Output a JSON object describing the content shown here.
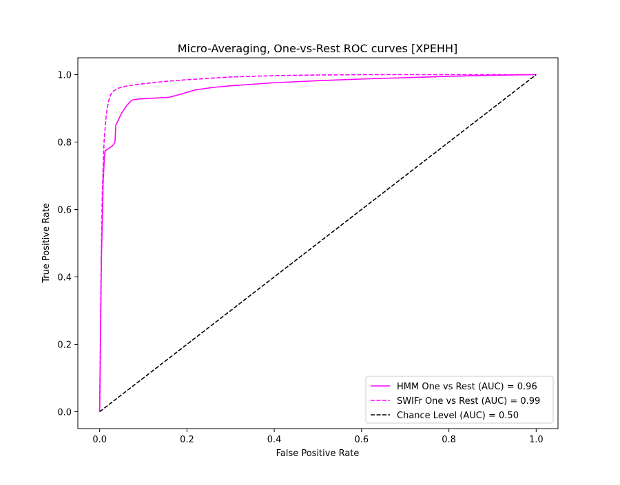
{
  "chart_data": {
    "type": "line",
    "title": "Micro-Averaging, One-vs-Rest ROC curves [XPEHH]",
    "xlabel": "False Positive Rate",
    "ylabel": "True Positive Rate",
    "xlim": [
      -0.05,
      1.05
    ],
    "ylim": [
      -0.05,
      1.05
    ],
    "xticks": [
      0.0,
      0.2,
      0.4,
      0.6,
      0.8,
      1.0
    ],
    "xtick_labels": [
      "0.0",
      "0.2",
      "0.4",
      "0.6",
      "0.8",
      "1.0"
    ],
    "yticks": [
      0.0,
      0.2,
      0.4,
      0.6,
      0.8,
      1.0
    ],
    "ytick_labels": [
      "0.0",
      "0.2",
      "0.4",
      "0.6",
      "0.8",
      "1.0"
    ],
    "grid": false,
    "legend_position": "lower-right",
    "series": [
      {
        "name": "HMM One vs Rest (AUC) = 0.96",
        "color": "#ff00ff",
        "style": "solid",
        "x": [
          0.0,
          0.004,
          0.008,
          0.011,
          0.013,
          0.02,
          0.03,
          0.035,
          0.037,
          0.05,
          0.06,
          0.07,
          0.075,
          0.09,
          0.12,
          0.15,
          0.16,
          0.18,
          0.22,
          0.26,
          0.3,
          0.4,
          0.5,
          0.6,
          0.7,
          0.8,
          0.9,
          1.0
        ],
        "y": [
          0.0,
          0.45,
          0.68,
          0.76,
          0.775,
          0.78,
          0.79,
          0.8,
          0.85,
          0.885,
          0.905,
          0.92,
          0.925,
          0.928,
          0.93,
          0.932,
          0.933,
          0.94,
          0.955,
          0.962,
          0.967,
          0.976,
          0.982,
          0.987,
          0.991,
          0.995,
          0.998,
          1.0
        ]
      },
      {
        "name": "SWIFr One vs Rest (AUC) = 0.99",
        "color": "#ff00ff",
        "style": "dashed",
        "x": [
          0.0,
          0.003,
          0.006,
          0.01,
          0.015,
          0.02,
          0.025,
          0.03,
          0.04,
          0.05,
          0.07,
          0.1,
          0.15,
          0.2,
          0.3,
          0.4,
          0.5,
          0.6,
          0.8,
          1.0
        ],
        "y": [
          0.0,
          0.4,
          0.65,
          0.8,
          0.88,
          0.92,
          0.94,
          0.95,
          0.958,
          0.963,
          0.968,
          0.973,
          0.98,
          0.985,
          0.993,
          0.997,
          0.999,
          1.0,
          1.0,
          1.0
        ]
      },
      {
        "name": "Chance Level (AUC) = 0.50",
        "color": "#000000",
        "style": "dashed",
        "x": [
          0.0,
          1.0
        ],
        "y": [
          0.0,
          1.0
        ]
      }
    ]
  }
}
